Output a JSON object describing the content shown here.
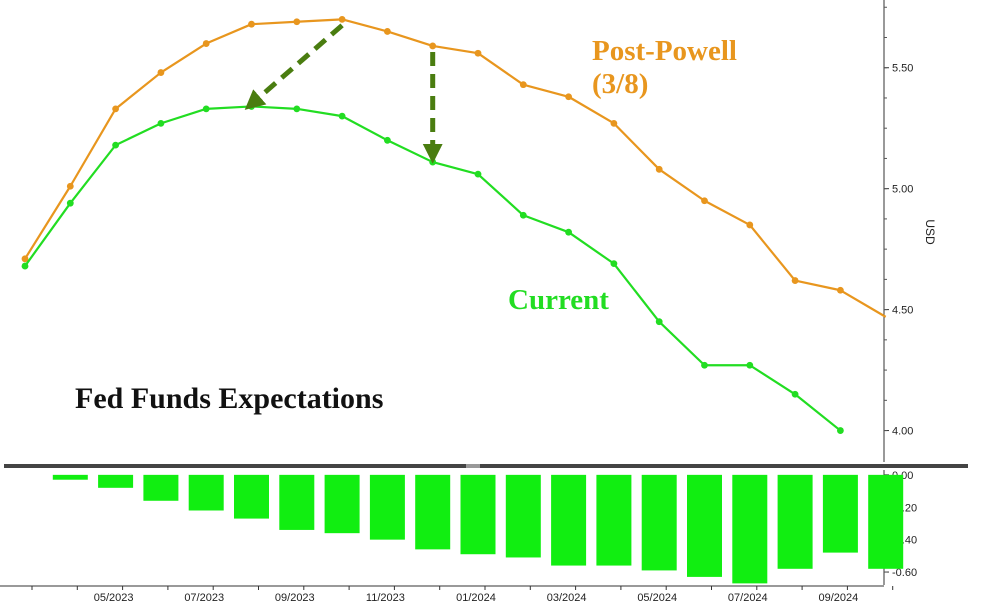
{
  "chart_data": [
    {
      "type": "line",
      "title": "Fed Funds Expectations",
      "ylabel": "USD",
      "ylim": [
        3.87,
        5.78
      ],
      "yticks": [
        "4.00",
        "4.50",
        "5.00",
        "5.50"
      ],
      "x": [
        "03/2023",
        "04/2023",
        "05/2023",
        "06/2023",
        "07/2023",
        "08/2023",
        "09/2023",
        "10/2023",
        "11/2023",
        "12/2023",
        "01/2024",
        "02/2024",
        "03/2024",
        "04/2024",
        "05/2024",
        "06/2024",
        "07/2024",
        "08/2024",
        "09/2024",
        "10/2024"
      ],
      "xticks": [
        "05/2023",
        "07/2023",
        "09/2023",
        "11/2023",
        "01/2024",
        "03/2024",
        "05/2024",
        "07/2024",
        "09/2024"
      ],
      "series": [
        {
          "name": "Post-Powell\n(3/8)",
          "label_lines": [
            "Post-Powell",
            "(3/8)"
          ],
          "color": "#e8961e",
          "values": [
            4.71,
            5.01,
            5.33,
            5.48,
            5.6,
            5.68,
            5.69,
            5.7,
            5.65,
            5.59,
            5.56,
            5.43,
            5.38,
            5.27,
            5.08,
            4.95,
            4.85,
            4.62,
            4.58,
            4.47
          ]
        },
        {
          "name": "Current",
          "label_lines": [
            "Current"
          ],
          "color": "#22dd22",
          "values": [
            4.68,
            4.94,
            5.18,
            5.27,
            5.33,
            5.34,
            5.33,
            5.3,
            5.2,
            5.11,
            5.06,
            4.89,
            4.82,
            4.69,
            4.45,
            4.27,
            4.27,
            4.15,
            4.0,
            null
          ]
        }
      ],
      "annotations": [
        {
          "type": "arrow",
          "style": "dashed",
          "color": "#4a7d10",
          "from": {
            "x": "10/2023",
            "y": 5.7
          },
          "to": {
            "x": "08/2023",
            "y": 5.35
          }
        },
        {
          "type": "arrow",
          "style": "dashed",
          "color": "#4a7d10",
          "from": {
            "x": "12/2023",
            "y": 5.59
          },
          "to": {
            "x": "12/2023",
            "y": 5.14
          }
        }
      ]
    },
    {
      "type": "bar",
      "ylim": [
        -0.68,
        0.03
      ],
      "yticks": [
        "0.00",
        "-0.20",
        "-0.40",
        "-0.60"
      ],
      "color": "#11ee11",
      "categories": [
        "04/2023",
        "05/2023",
        "06/2023",
        "07/2023",
        "08/2023",
        "09/2023",
        "10/2023",
        "11/2023",
        "12/2023",
        "01/2024",
        "02/2024",
        "03/2024",
        "04/2024",
        "05/2024",
        "06/2024",
        "07/2024",
        "08/2024",
        "09/2024",
        "10/2024"
      ],
      "values": [
        -0.03,
        -0.08,
        -0.16,
        -0.22,
        -0.27,
        -0.34,
        -0.36,
        -0.4,
        -0.46,
        -0.49,
        -0.51,
        -0.56,
        -0.56,
        -0.59,
        -0.63,
        -0.67,
        -0.58,
        -0.48,
        -0.58
      ]
    }
  ]
}
